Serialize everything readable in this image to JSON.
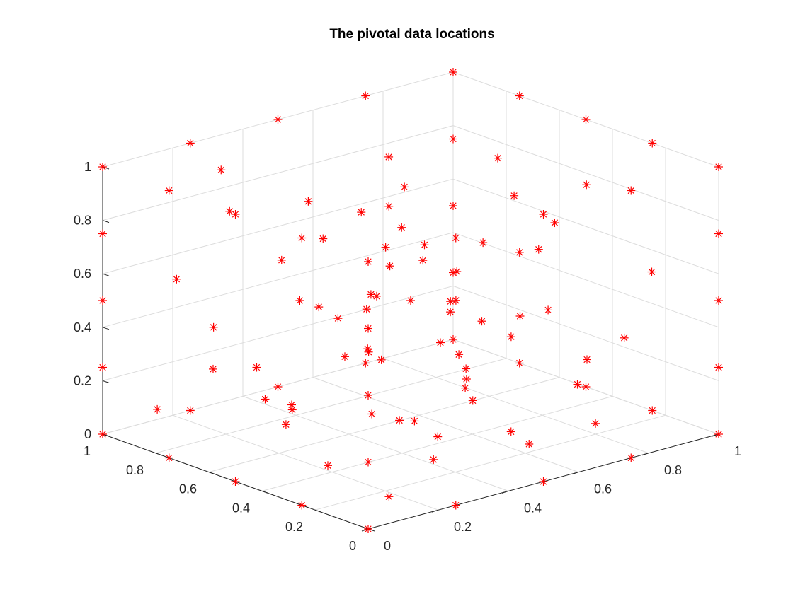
{
  "chart_data": {
    "type": "scatter",
    "title": "The pivotal data locations",
    "xlabel": "",
    "ylabel": "",
    "zlabel": "",
    "xlim": [
      0,
      1
    ],
    "ylim": [
      0,
      1
    ],
    "zlim": [
      0,
      1
    ],
    "ticks": {
      "x": [
        "0",
        "0.2",
        "0.4",
        "0.6",
        "0.8",
        "1"
      ],
      "y": [
        "0",
        "0.2",
        "0.4",
        "0.6",
        "0.8",
        "1"
      ],
      "z": [
        "0",
        "0.2",
        "0.4",
        "0.6",
        "0.8",
        "1"
      ]
    },
    "grid": true,
    "view": "3-D, x axis toward lower right, y axis toward lower left, z vertical",
    "marker": "asterisk",
    "marker_color": "#ff0000",
    "series": [
      {
        "points": [
          [
            0,
            0,
            0
          ],
          [
            0,
            0,
            1
          ],
          [
            1,
            0,
            0
          ],
          [
            0,
            1,
            0
          ],
          [
            1,
            1,
            0
          ],
          [
            1,
            0,
            1
          ],
          [
            0,
            1,
            1
          ],
          [
            1,
            1,
            1
          ],
          [
            0.5,
            0,
            0
          ],
          [
            0,
            0.5,
            0
          ],
          [
            0,
            0,
            0.5
          ],
          [
            1,
            0.5,
            0
          ],
          [
            0.5,
            1,
            0
          ],
          [
            1,
            0,
            0.5
          ],
          [
            0,
            1,
            0.5
          ],
          [
            1,
            1,
            0.5
          ],
          [
            0.5,
            0,
            1
          ],
          [
            0,
            0.5,
            1
          ],
          [
            1,
            0.5,
            1
          ],
          [
            0.5,
            1,
            1
          ],
          [
            0.25,
            0,
            0
          ],
          [
            0.75,
            0,
            0
          ],
          [
            0,
            0.25,
            0
          ],
          [
            0,
            0.75,
            0
          ],
          [
            0,
            0,
            0.25
          ],
          [
            0,
            0,
            0.75
          ],
          [
            1,
            0.25,
            0
          ],
          [
            1,
            0.75,
            0
          ],
          [
            0.25,
            1,
            0
          ],
          [
            0.75,
            1,
            0
          ],
          [
            1,
            0,
            0.25
          ],
          [
            1,
            0,
            0.75
          ],
          [
            0,
            1,
            0.25
          ],
          [
            0,
            1,
            0.75
          ],
          [
            1,
            1,
            0.25
          ],
          [
            1,
            1,
            0.75
          ],
          [
            0.25,
            0,
            1
          ],
          [
            0.75,
            0,
            1
          ],
          [
            0,
            0.25,
            1
          ],
          [
            0,
            0.75,
            1
          ],
          [
            1,
            0.25,
            1
          ],
          [
            1,
            0.75,
            1
          ],
          [
            0.25,
            1,
            1
          ],
          [
            0.75,
            1,
            1
          ],
          [
            0.12,
            0.08,
            0.05
          ],
          [
            0.3,
            0.15,
            0.1
          ],
          [
            0.55,
            0.12,
            0.08
          ],
          [
            0.8,
            0.2,
            0.04
          ],
          [
            0.15,
            0.35,
            0.06
          ],
          [
            0.42,
            0.38,
            0.12
          ],
          [
            0.65,
            0.32,
            0.02
          ],
          [
            0.9,
            0.4,
            0.08
          ],
          [
            0.22,
            0.6,
            0.1
          ],
          [
            0.48,
            0.62,
            0.04
          ],
          [
            0.72,
            0.58,
            0.1
          ],
          [
            0.35,
            0.85,
            0.06
          ],
          [
            0.6,
            0.88,
            0.12
          ],
          [
            0.88,
            0.82,
            0.05
          ],
          [
            0.08,
            0.9,
            0.1
          ],
          [
            0.18,
            0.12,
            0.3
          ],
          [
            0.45,
            0.2,
            0.25
          ],
          [
            0.7,
            0.1,
            0.35
          ],
          [
            0.92,
            0.25,
            0.3
          ],
          [
            0.1,
            0.42,
            0.28
          ],
          [
            0.38,
            0.5,
            0.35
          ],
          [
            0.62,
            0.45,
            0.22
          ],
          [
            0.85,
            0.55,
            0.3
          ],
          [
            0.25,
            0.75,
            0.25
          ],
          [
            0.52,
            0.8,
            0.32
          ],
          [
            0.78,
            0.72,
            0.28
          ],
          [
            0.05,
            0.65,
            0.35
          ],
          [
            0.95,
            0.92,
            0.3
          ],
          [
            0.15,
            0.2,
            0.55
          ],
          [
            0.4,
            0.1,
            0.6
          ],
          [
            0.68,
            0.22,
            0.5
          ],
          [
            0.9,
            0.12,
            0.6
          ],
          [
            0.2,
            0.45,
            0.6
          ],
          [
            0.5,
            0.35,
            0.55
          ],
          [
            0.75,
            0.42,
            0.62
          ],
          [
            0.32,
            0.68,
            0.5
          ],
          [
            0.58,
            0.7,
            0.6
          ],
          [
            0.82,
            0.65,
            0.55
          ],
          [
            0.12,
            0.88,
            0.58
          ],
          [
            0.45,
            0.92,
            0.52
          ],
          [
            0.7,
            0.95,
            0.6
          ],
          [
            0.1,
            0.1,
            0.8
          ],
          [
            0.35,
            0.25,
            0.85
          ],
          [
            0.6,
            0.15,
            0.78
          ],
          [
            0.85,
            0.3,
            0.88
          ],
          [
            0.25,
            0.5,
            0.82
          ],
          [
            0.52,
            0.55,
            0.9
          ],
          [
            0.78,
            0.48,
            0.8
          ],
          [
            0.15,
            0.72,
            0.88
          ],
          [
            0.42,
            0.78,
            0.8
          ],
          [
            0.68,
            0.82,
            0.86
          ],
          [
            0.9,
            0.7,
            0.82
          ],
          [
            0.3,
            0.95,
            0.9
          ],
          [
            0.55,
            0.6,
            0.72
          ],
          [
            0.28,
            0.32,
            0.42
          ],
          [
            0.62,
            0.28,
            0.4
          ],
          [
            0.45,
            0.6,
            0.45
          ],
          [
            0.72,
            0.62,
            0.38
          ],
          [
            0.38,
            0.42,
            0.7
          ],
          [
            0.6,
            0.52,
            0.3
          ],
          [
            0.22,
            0.28,
            0.7
          ],
          [
            0.8,
            0.85,
            0.42
          ],
          [
            0.5,
            0.5,
            0.5
          ],
          [
            0.35,
            0.2,
            0.15
          ],
          [
            0.58,
            0.4,
            0.18
          ],
          [
            0.2,
            0.55,
            0.18
          ],
          [
            0.82,
            0.38,
            0.72
          ],
          [
            0.65,
            0.78,
            0.7
          ],
          [
            0.18,
            0.82,
            0.4
          ]
        ]
      }
    ]
  }
}
